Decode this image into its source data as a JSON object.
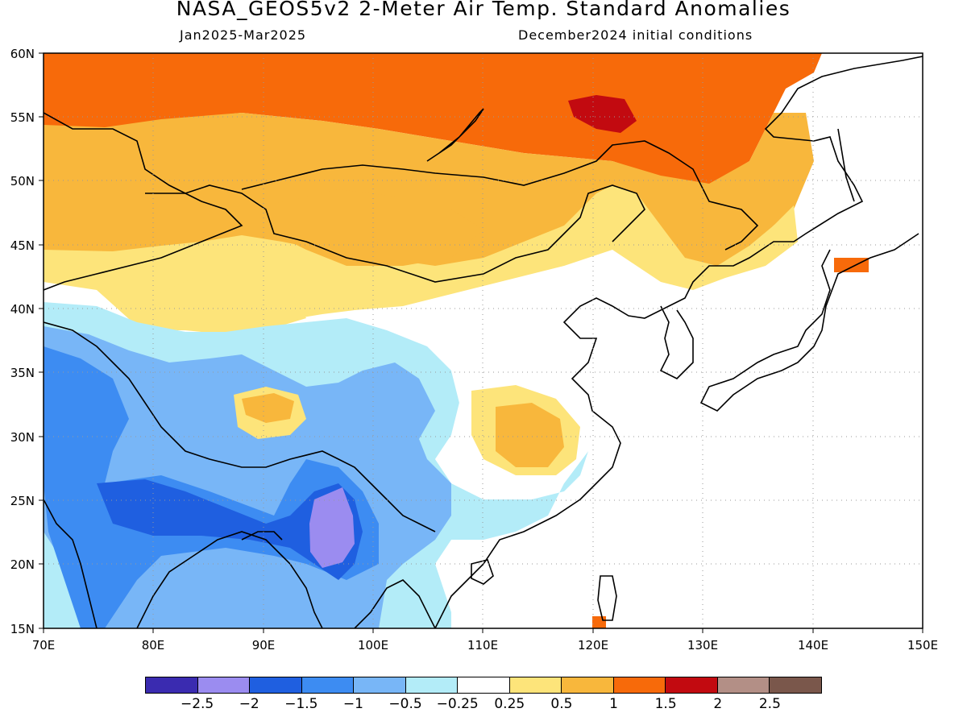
{
  "title": "NASA_GEOS5v2 2-Meter Air Temp. Standard Anomalies",
  "period": "Jan2025-Mar2025",
  "init": "December2024 initial conditions",
  "axes": {
    "lon_labels": [
      "70E",
      "80E",
      "90E",
      "100E",
      "110E",
      "120E",
      "130E",
      "140E",
      "150E"
    ],
    "lat_labels": [
      "15N",
      "20N",
      "25N",
      "30N",
      "35N",
      "40N",
      "45N",
      "50N",
      "55N",
      "60N"
    ],
    "lon_range": [
      70,
      150
    ],
    "lat_range": [
      15,
      60
    ],
    "grid": "dotted"
  },
  "colorbar": {
    "colors": [
      "#3a2bb0",
      "#9b8cf0",
      "#1f5fe0",
      "#3d8cf2",
      "#78b6f7",
      "#b3ecf8",
      "#ffffff",
      "#fde47a",
      "#f8b73c",
      "#f76a0a",
      "#c20a10",
      "#b38f86",
      "#7a574b"
    ],
    "labels": [
      "-2.5",
      "-2",
      "-1.5",
      "-1",
      "-0.5",
      "-0.25",
      "0.25",
      "0.5",
      "1",
      "1.5",
      "2",
      "2.5"
    ]
  },
  "legend_colors": {
    "strong_warm": "#f76a0a",
    "warm": "#f8b73c",
    "light_warm": "#fde47a",
    "light_cool": "#b3ecf8",
    "cool": "#78b6f7",
    "cooler": "#3d8cf2",
    "coolest": "#1f5fe0",
    "extreme_cool": "#9b8cf0",
    "extreme_warm": "#c20a10"
  }
}
